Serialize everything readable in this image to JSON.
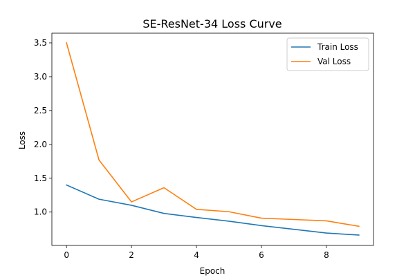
{
  "chart_data": {
    "type": "line",
    "title": "SE-ResNet-34 Loss Curve",
    "xlabel": "Epoch",
    "ylabel": "Loss",
    "x": [
      0,
      1,
      2,
      3,
      4,
      5,
      6,
      7,
      8,
      9
    ],
    "xlim": [
      -0.45,
      9.45
    ],
    "ylim": [
      0.507,
      3.643
    ],
    "xticks": [
      0,
      2,
      4,
      6,
      8
    ],
    "yticks": [
      1.0,
      1.5,
      2.0,
      2.5,
      3.0,
      3.5
    ],
    "xtick_labels": [
      "0",
      "2",
      "4",
      "6",
      "8"
    ],
    "ytick_labels": [
      "1.0",
      "1.5",
      "2.0",
      "2.5",
      "3.0",
      "3.5"
    ],
    "grid": false,
    "legend_position": "top-right",
    "series": [
      {
        "name": "Train Loss",
        "color": "#1f77b4",
        "values": [
          1.4,
          1.19,
          1.1,
          0.98,
          0.92,
          0.865,
          0.8,
          0.745,
          0.69,
          0.66
        ]
      },
      {
        "name": "Val Loss",
        "color": "#ff7f0e",
        "values": [
          3.5,
          1.77,
          1.15,
          1.36,
          1.04,
          1.005,
          0.91,
          0.89,
          0.87,
          0.79
        ]
      }
    ]
  }
}
